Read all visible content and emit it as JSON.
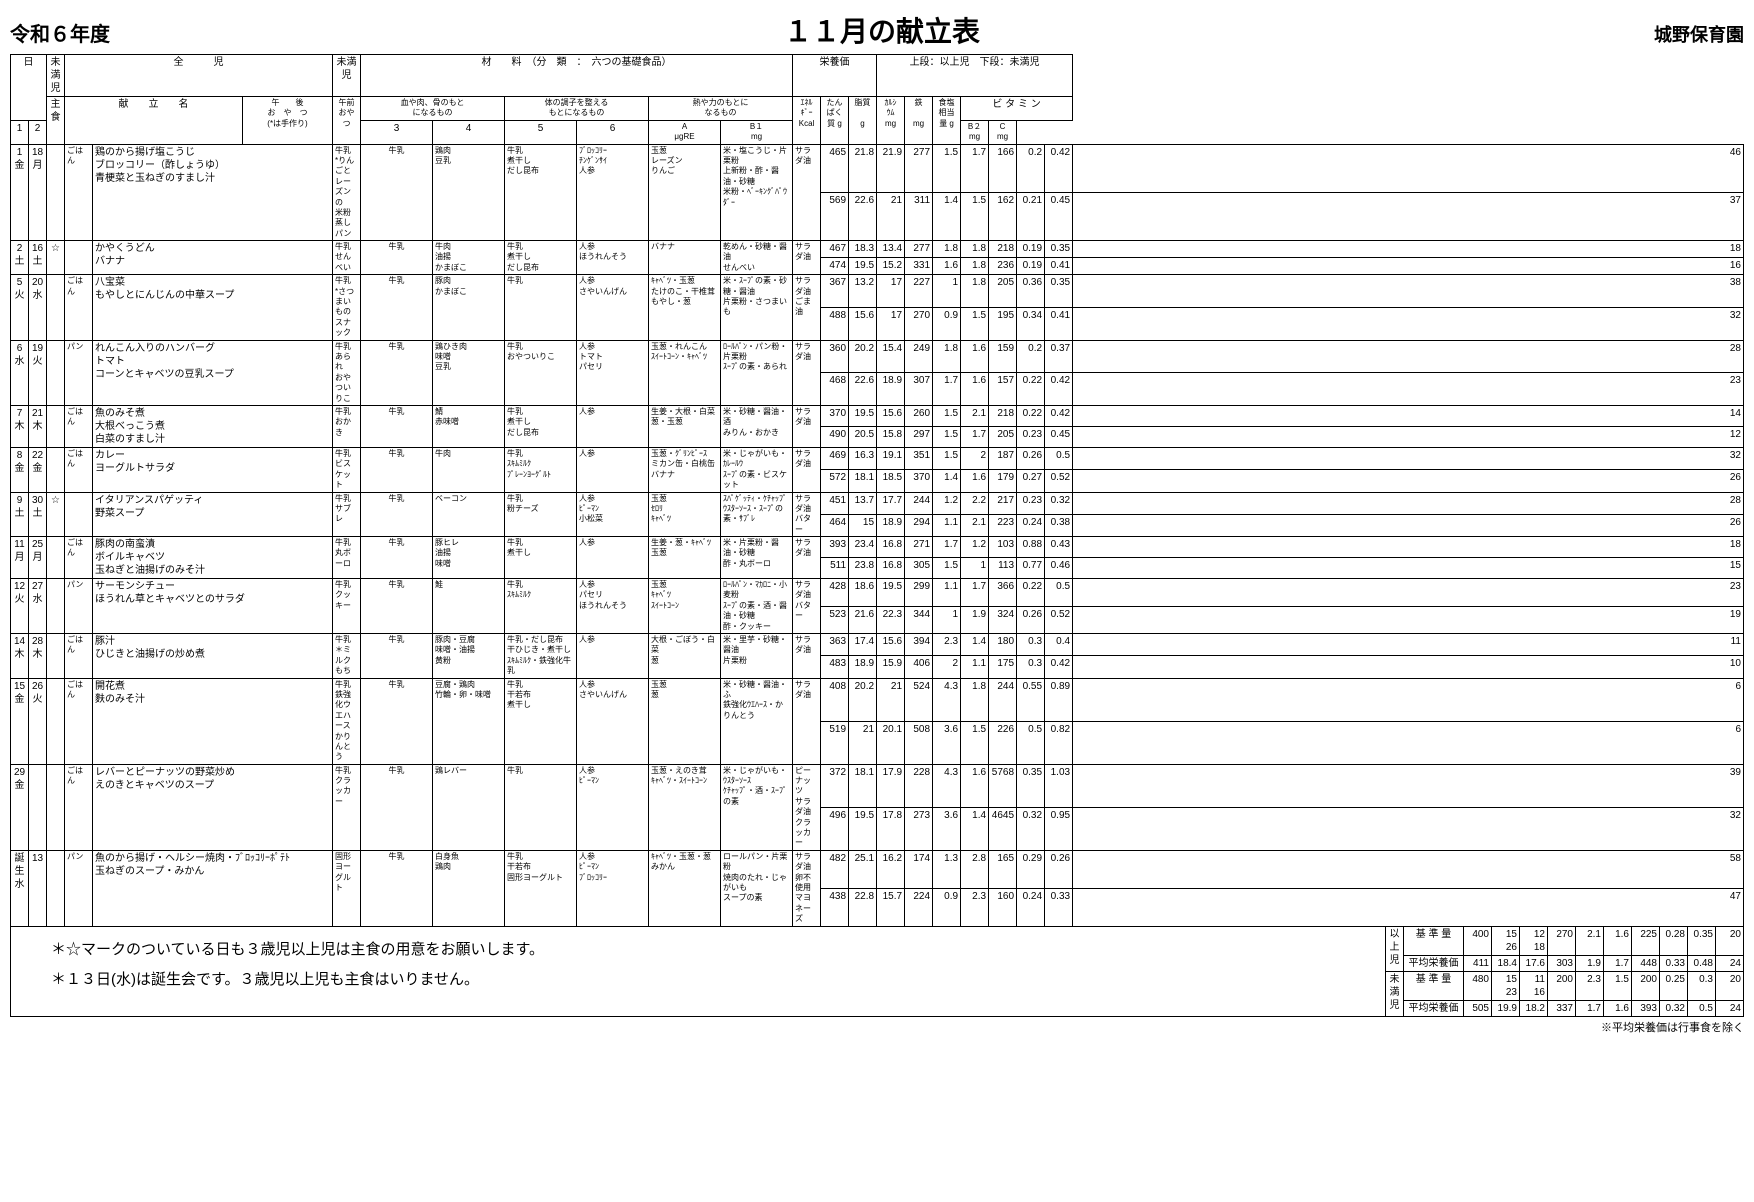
{
  "header": {
    "year": "令和６年度",
    "title": "１１月の献立表",
    "school": "城野保育園"
  },
  "headerRow": {
    "miman1": "未満児",
    "zenji": "全　　　児",
    "miman2": "未満児",
    "zairyou": "材　　料　（分　類　：　六つの基礎食品）",
    "eiyou": "栄養価",
    "eiyouNote": "上段：以上児　下段：未満児"
  },
  "subHeader": {
    "day": "日",
    "shushoku": "主食",
    "kondate": "献　　立　　名",
    "gogo": "午　　後\nお　や　つ\n(*は手作り)",
    "gozen": "午前\nおやつ",
    "grp1": "血や肉、骨のもと\nになるもの",
    "grp2": "体の調子を整える\nもとになるもの",
    "grp3": "熱や力のもとに\nなるもの",
    "c1": "1",
    "c2": "2",
    "c3": "3",
    "c4": "4",
    "c5": "5",
    "c6": "6",
    "kcal": "ｴﾈﾙ\nｷﾞｰ\nKcal",
    "tanpaku": "たん\nぱく\n質 g",
    "shishitsu": "脂質\n\ng",
    "ca": "ｶﾙｼ\nｳﾑ\nmg",
    "fe": "鉄\n\nmg",
    "salt": "食塩\n相当\n量 g",
    "vita": "ビ タ ミ ン",
    "va": "A\nμgRE",
    "vb1": "B１\nmg",
    "vb2": "B２\nmg",
    "vc": "C\nmg"
  },
  "rows": [
    {
      "d1": "1",
      "d2": "18",
      "wd1": "金",
      "wd2": "月",
      "star": "",
      "staple": "ごはん",
      "menu": "鶏のから揚げ塩こうじ\nブロッコリー（酢しょうゆ）\n青梗菜と玉ねぎのすまし汁",
      "snack": "牛乳\n*りんごとレーズンの\n米粉蒸しパン",
      "am": "牛乳",
      "i1": "鶏肉\n豆乳",
      "i2": "牛乳\n煮干し\nだし昆布",
      "i3": "ﾌﾞﾛｯｺﾘｰ\nﾁﾝｹﾞﾝｻｲ\n人参",
      "i4": "玉葱\nレーズン\nりんご",
      "i5": "米・塩こうじ・片栗粉\n上新粉・酢・醤油・砂糖\n米粉・ﾍﾞｰｷﾝｸﾞﾊﾟｳﾀﾞｰ",
      "i6": "サラダ油",
      "n": [
        [
          "465",
          "21.8",
          "21.9",
          "277",
          "1.5",
          "1.7",
          "166",
          "0.2",
          "0.42",
          "46"
        ],
        [
          "569",
          "22.6",
          "21",
          "311",
          "1.4",
          "1.5",
          "162",
          "0.21",
          "0.45",
          "37"
        ]
      ]
    },
    {
      "d1": "2",
      "d2": "16",
      "wd1": "土",
      "wd2": "土",
      "star": "☆",
      "staple": "",
      "menu": "かやくうどん\nバナナ",
      "snack": "牛乳\nせんべい",
      "am": "牛乳",
      "i1": "牛肉\n油揚\nかまぼこ",
      "i2": "牛乳\n煮干し\nだし昆布",
      "i3": "人参\nほうれんそう",
      "i4": "バナナ",
      "i5": "乾めん・砂糖・醤油\nせんべい",
      "i6": "サラダ油",
      "n": [
        [
          "467",
          "18.3",
          "13.4",
          "277",
          "1.8",
          "1.8",
          "218",
          "0.19",
          "0.35",
          "18"
        ],
        [
          "474",
          "19.5",
          "15.2",
          "331",
          "1.6",
          "1.8",
          "236",
          "0.19",
          "0.41",
          "16"
        ]
      ]
    },
    {
      "d1": "5",
      "d2": "20",
      "wd1": "火",
      "wd2": "水",
      "star": "",
      "staple": "ごはん",
      "menu": "八宝菜\nもやしとにんじんの中華スープ",
      "snack": "牛乳\n*さつまいもの\nスナック",
      "am": "牛乳",
      "i1": "豚肉\nかまぼこ",
      "i2": "牛乳",
      "i3": "人参\nさやいんげん",
      "i4": "ｷｬﾍﾞﾂ・玉葱\nたけのこ・干椎茸\nもやし・葱",
      "i5": "米・ｽｰﾌﾟの素・砂糖・醤油\n片栗粉・さつまいも",
      "i6": "サラダ油\nごま油",
      "n": [
        [
          "367",
          "13.2",
          "17",
          "227",
          "1",
          "1.8",
          "205",
          "0.36",
          "0.35",
          "38"
        ],
        [
          "488",
          "15.6",
          "17",
          "270",
          "0.9",
          "1.5",
          "195",
          "0.34",
          "0.41",
          "32"
        ]
      ]
    },
    {
      "d1": "6",
      "d2": "19",
      "wd1": "水",
      "wd2": "火",
      "star": "",
      "staple": "パン",
      "menu": "れんこん入りのハンバーグ\nトマト\nコーンとキャベツの豆乳スープ",
      "snack": "牛乳\nあられ\nおやついりこ",
      "am": "牛乳",
      "i1": "鶏ひき肉\n味噌\n豆乳",
      "i2": "牛乳\nおやついりこ",
      "i3": "人参\nトマト\nパセリ",
      "i4": "玉葱・れんこん\nｽｲｰﾄｺｰﾝ・ｷｬﾍﾞﾂ",
      "i5": "ﾛｰﾙﾊﾟﾝ・パン粉・片栗粉\nｽｰﾌﾟの素・あられ",
      "i6": "サラダ油",
      "n": [
        [
          "360",
          "20.2",
          "15.4",
          "249",
          "1.8",
          "1.6",
          "159",
          "0.2",
          "0.37",
          "28"
        ],
        [
          "468",
          "22.6",
          "18.9",
          "307",
          "1.7",
          "1.6",
          "157",
          "0.22",
          "0.42",
          "23"
        ]
      ]
    },
    {
      "d1": "7",
      "d2": "21",
      "wd1": "木",
      "wd2": "木",
      "star": "",
      "staple": "ごはん",
      "menu": "魚のみそ煮\n大根べっこう煮\n白菜のすまし汁",
      "snack": "牛乳\nおかき",
      "am": "牛乳",
      "i1": "鯖\n赤味噌",
      "i2": "牛乳\n煮干し\nだし昆布",
      "i3": "人参",
      "i4": "生姜・大根・白菜\n葱・玉葱",
      "i5": "米・砂糖・醤油・酒\nみりん・おかき",
      "i6": "サラダ油",
      "n": [
        [
          "370",
          "19.5",
          "15.6",
          "260",
          "1.5",
          "2.1",
          "218",
          "0.22",
          "0.42",
          "14"
        ],
        [
          "490",
          "20.5",
          "15.8",
          "297",
          "1.5",
          "1.7",
          "205",
          "0.23",
          "0.45",
          "12"
        ]
      ]
    },
    {
      "d1": "8",
      "d2": "22",
      "wd1": "金",
      "wd2": "金",
      "star": "",
      "staple": "ごはん",
      "menu": "カレー\nヨーグルトサラダ",
      "snack": "牛乳\nビスケット",
      "am": "牛乳",
      "i1": "牛肉",
      "i2": "牛乳\nｽｷﾑﾐﾙｸ\nﾌﾟﾚｰﾝﾖｰｸﾞﾙﾄ",
      "i3": "人参",
      "i4": "玉葱・ｸﾞﾘﾝﾋﾟｰｽ\nミカン缶・白桃缶\nバナナ",
      "i5": "米・じゃがいも・ｶﾚｰﾙｳ\nｽｰﾌﾟの素・ビスケット",
      "i6": "サラダ油",
      "n": [
        [
          "469",
          "16.3",
          "19.1",
          "351",
          "1.5",
          "2",
          "187",
          "0.26",
          "0.5",
          "32"
        ],
        [
          "572",
          "18.1",
          "18.5",
          "370",
          "1.4",
          "1.6",
          "179",
          "0.27",
          "0.52",
          "26"
        ]
      ]
    },
    {
      "d1": "9",
      "d2": "30",
      "wd1": "土",
      "wd2": "土",
      "star": "☆",
      "staple": "",
      "menu": "イタリアンスパゲッティ\n野菜スープ",
      "snack": "牛乳\nサブレ",
      "am": "牛乳",
      "i1": "ベーコン",
      "i2": "牛乳\n粉チーズ",
      "i3": "人参\nﾋﾟｰﾏﾝ\n小松菜",
      "i4": "玉葱\nｾﾛﾘ\nｷｬﾍﾞﾂ",
      "i5": "ｽﾊﾟｹﾞｯﾃｨ・ｹﾁｬｯﾌﾟ\nｳｽﾀｰｿｰｽ・ｽｰﾌﾟの素・ｻﾌﾞﾚ",
      "i6": "サラダ油\nバター",
      "n": [
        [
          "451",
          "13.7",
          "17.7",
          "244",
          "1.2",
          "2.2",
          "217",
          "0.23",
          "0.32",
          "28"
        ],
        [
          "464",
          "15",
          "18.9",
          "294",
          "1.1",
          "2.1",
          "223",
          "0.24",
          "0.38",
          "26"
        ]
      ]
    },
    {
      "d1": "11",
      "d2": "25",
      "wd1": "月",
      "wd2": "月",
      "star": "",
      "staple": "ごはん",
      "menu": "豚肉の南蛮漬\nボイルキャベツ\n玉ねぎと油揚げのみそ汁",
      "snack": "牛乳\n丸ボーロ",
      "am": "牛乳",
      "i1": "豚ヒレ\n油揚\n味噌",
      "i2": "牛乳\n煮干し",
      "i3": "人参",
      "i4": "生姜・葱・ｷｬﾍﾞﾂ\n玉葱",
      "i5": "米・片栗粉・醤油・砂糖\n酢・丸ボーロ",
      "i6": "サラダ油",
      "n": [
        [
          "393",
          "23.4",
          "16.8",
          "271",
          "1.7",
          "1.2",
          "103",
          "0.88",
          "0.43",
          "18"
        ],
        [
          "511",
          "23.8",
          "16.8",
          "305",
          "1.5",
          "1",
          "113",
          "0.77",
          "0.46",
          "15"
        ]
      ]
    },
    {
      "d1": "12",
      "d2": "27",
      "wd1": "火",
      "wd2": "水",
      "star": "",
      "staple": "パン",
      "menu": "サーモンシチュー\nほうれん草とキャベツとのサラダ",
      "snack": "牛乳\nクッキー",
      "am": "牛乳",
      "i1": "鮭",
      "i2": "牛乳\nｽｷﾑﾐﾙｸ",
      "i3": "人参\nパセリ\nほうれんそう",
      "i4": "玉葱\nｷｬﾍﾞﾂ\nｽｲｰﾄｺｰﾝ",
      "i5": "ﾛｰﾙﾊﾟﾝ・ﾏｶﾛﾆ・小麦粉\nｽｰﾌﾟの素・酒・醤油・砂糖\n酢・クッキー",
      "i6": "サラダ油\nバター",
      "n": [
        [
          "428",
          "18.6",
          "19.5",
          "299",
          "1.1",
          "1.7",
          "366",
          "0.22",
          "0.5",
          "23"
        ],
        [
          "523",
          "21.6",
          "22.3",
          "344",
          "1",
          "1.9",
          "324",
          "0.26",
          "0.52",
          "19"
        ]
      ]
    },
    {
      "d1": "14",
      "d2": "28",
      "wd1": "木",
      "wd2": "木",
      "star": "",
      "staple": "ごはん",
      "menu": "豚汁\nひじきと油揚げの炒め煮",
      "snack": "牛乳\n＊ミルクもち",
      "am": "牛乳",
      "i1": "豚肉・豆腐\n味噌・油揚\n黄粉",
      "i2": "牛乳・だし昆布\n干ひじき・煮干し\nｽｷﾑﾐﾙｸ・鉄強化牛乳",
      "i3": "人参",
      "i4": "大根・ごぼう・白菜\n葱",
      "i5": "米・里芋・砂糖・醤油\n片栗粉",
      "i6": "サラダ油",
      "n": [
        [
          "363",
          "17.4",
          "15.6",
          "394",
          "2.3",
          "1.4",
          "180",
          "0.3",
          "0.4",
          "11"
        ],
        [
          "483",
          "18.9",
          "15.9",
          "406",
          "2",
          "1.1",
          "175",
          "0.3",
          "0.42",
          "10"
        ]
      ]
    },
    {
      "d1": "15",
      "d2": "26",
      "wd1": "金",
      "wd2": "火",
      "star": "",
      "staple": "ごはん",
      "menu": "開花煮\n麩のみそ汁",
      "snack": "牛乳\n鉄強化ウエハース\nかりんとう",
      "am": "牛乳",
      "i1": "豆腐・鶏肉\n竹輪・卵・味噌",
      "i2": "牛乳\n干若布\n煮干し",
      "i3": "人参\nさやいんげん",
      "i4": "玉葱\n葱",
      "i5": "米・砂糖・醤油・ふ\n鉄強化ｳｴﾊｰｽ・かりんとう",
      "i6": "サラダ油",
      "n": [
        [
          "408",
          "20.2",
          "21",
          "524",
          "4.3",
          "1.8",
          "244",
          "0.55",
          "0.89",
          "6"
        ],
        [
          "519",
          "21",
          "20.1",
          "508",
          "3.6",
          "1.5",
          "226",
          "0.5",
          "0.82",
          "6"
        ]
      ]
    },
    {
      "d1": "29",
      "d2": "",
      "wd1": "金",
      "wd2": "",
      "star": "",
      "staple": "ごはん",
      "menu": "レバーとピーナッツの野菜炒め\nえのきとキャベツのスープ",
      "snack": "牛乳\nクラッカー",
      "am": "牛乳",
      "i1": "鶏レバー",
      "i2": "牛乳",
      "i3": "人参\nﾋﾟｰﾏﾝ",
      "i4": "玉葱・えのき茸\nｷｬﾍﾞﾂ・ｽｲｰﾄｺｰﾝ",
      "i5": "米・じゃがいも・ｳｽﾀｰｿｰｽ\nｹﾁｬｯﾌﾟ・酒・ｽｰﾌﾟの素",
      "i6": "ピーナッツ\nサラダ油\nクラッカー",
      "n": [
        [
          "372",
          "18.1",
          "17.9",
          "228",
          "4.3",
          "1.6",
          "5768",
          "0.35",
          "1.03",
          "39"
        ],
        [
          "496",
          "19.5",
          "17.8",
          "273",
          "3.6",
          "1.4",
          "4645",
          "0.32",
          "0.95",
          "32"
        ]
      ]
    },
    {
      "d1": "誕生",
      "d2": "13",
      "wd1": "水",
      "wd2": "",
      "star": "",
      "staple": "パン",
      "menu": "魚のから揚げ・ヘルシー焼肉・ﾌﾞﾛｯｺﾘｰﾎﾟﾃﾄ\n玉ねぎのスープ・みかん",
      "snack": "固形ヨーグルト",
      "am": "牛乳",
      "i1": "白身魚\n鶏肉",
      "i2": "牛乳\n干若布\n固形ヨーグルト",
      "i3": "人参\nﾋﾟｰﾏﾝ\nﾌﾞﾛｯｺﾘｰ",
      "i4": "ｷｬﾍﾞﾂ・玉葱・葱\nみかん",
      "i5": "ロールパン・片栗粉\n焼肉のたれ・じゃがいも\nスープの素",
      "i6": "サラダ油\n卵不使用マヨネーズ",
      "n": [
        [
          "482",
          "25.1",
          "16.2",
          "174",
          "1.3",
          "2.8",
          "165",
          "0.29",
          "0.26",
          "58"
        ],
        [
          "438",
          "22.8",
          "15.7",
          "224",
          "0.9",
          "2.3",
          "160",
          "0.24",
          "0.33",
          "47"
        ]
      ]
    }
  ],
  "notes": [
    "＊☆マークのついている日も３歳児以上児は主食の用意をお願いします。",
    "＊１３日(水)は誕生会です。３歳児以上児も主食はいりません。"
  ],
  "summary": {
    "ijou_label": "以上児",
    "miman_label": "未満児",
    "kijun": "基 準 量",
    "heikin": "平均栄養価",
    "ijou_kijun": [
      "400",
      "15\n26",
      "12\n18",
      "270",
      "2.1",
      "1.6",
      "225",
      "0.28",
      "0.35",
      "20"
    ],
    "ijou_heikin": [
      "411",
      "18.4",
      "17.6",
      "303",
      "1.9",
      "1.7",
      "448",
      "0.33",
      "0.48",
      "24"
    ],
    "miman_kijun": [
      "480",
      "15\n23",
      "11\n16",
      "200",
      "2.3",
      "1.5",
      "200",
      "0.25",
      "0.3",
      "20"
    ],
    "miman_heikin": [
      "505",
      "19.9",
      "18.2",
      "337",
      "1.7",
      "1.6",
      "393",
      "0.32",
      "0.5",
      "24"
    ]
  },
  "footerNote": "※平均栄養価は行事食を除く"
}
